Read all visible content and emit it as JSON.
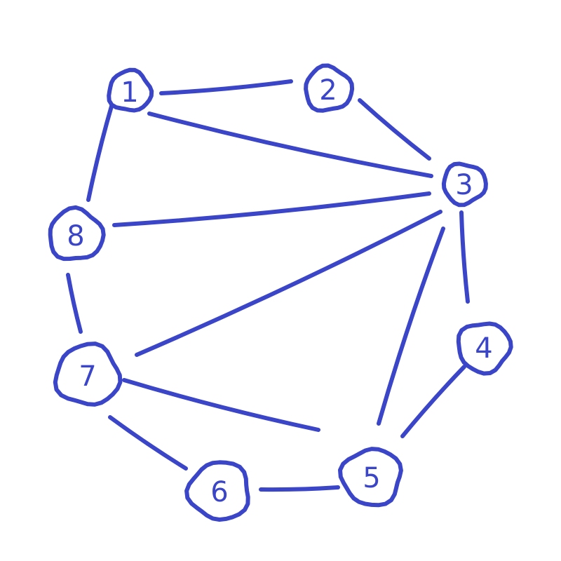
{
  "stroke_color": "#3a45c8",
  "nodes": [
    {
      "id": "1",
      "label": "1"
    },
    {
      "id": "2",
      "label": "2"
    },
    {
      "id": "3",
      "label": "3"
    },
    {
      "id": "4",
      "label": "4"
    },
    {
      "id": "5",
      "label": "5"
    },
    {
      "id": "6",
      "label": "6"
    },
    {
      "id": "7",
      "label": "7"
    },
    {
      "id": "8",
      "label": "8"
    }
  ],
  "edges": [
    [
      "1",
      "2"
    ],
    [
      "1",
      "3"
    ],
    [
      "1",
      "8"
    ],
    [
      "2",
      "3"
    ],
    [
      "3",
      "8"
    ],
    [
      "3",
      "7"
    ],
    [
      "3",
      "5"
    ],
    [
      "3",
      "4"
    ],
    [
      "4",
      "5"
    ],
    [
      "5",
      "6"
    ],
    [
      "5",
      "7"
    ],
    [
      "6",
      "7"
    ],
    [
      "7",
      "8"
    ]
  ]
}
